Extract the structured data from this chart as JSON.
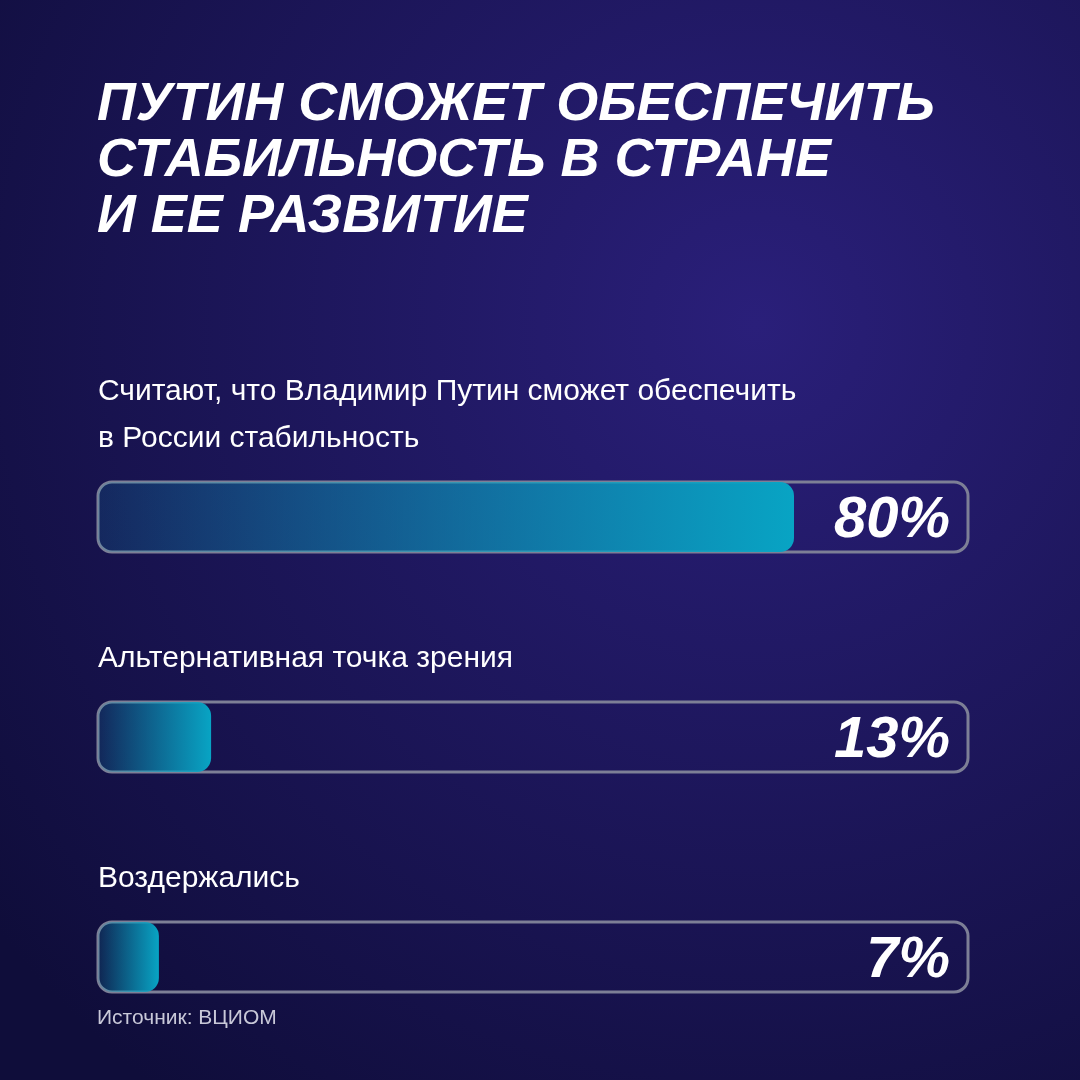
{
  "chart_data": {
    "type": "bar",
    "orientation": "horizontal",
    "title": "ПУТИН СМОЖЕТ ОБЕСПЕЧИТЬ\nСТАБИЛЬНОСТЬ В СТРАНЕ\nИ ЕЕ РАЗВИТИЕ",
    "categories": [
      "Считают, что Владимир Путин сможет обеспечить в России стабильность",
      "Альтернативная точка зрения",
      "Воздержались"
    ],
    "values": [
      80,
      13,
      7
    ],
    "value_labels": [
      "80%",
      "13%",
      "7%"
    ],
    "color": "#08a4c4",
    "xlim": [
      0,
      100
    ],
    "annotations": [
      "Источник: ВЦИОМ"
    ]
  }
}
